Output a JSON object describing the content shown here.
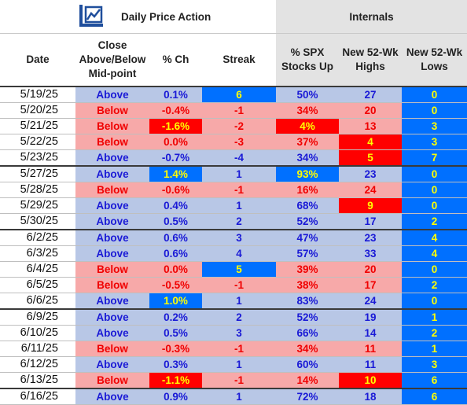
{
  "header": {
    "daily_price_action": "Daily Price Action",
    "internals": "Internals",
    "logo_icon": "rising-chart-logo-icon",
    "columns": {
      "date": "Date",
      "close": [
        "Close",
        "Above/Below",
        "Mid-point"
      ],
      "pct": "% Ch",
      "streak": "Streak",
      "spx": [
        "% SPX",
        "Stocks Up"
      ],
      "highs": [
        "New 52-Wk",
        "Highs"
      ],
      "lows": [
        "New 52-Wk",
        "Lows"
      ]
    }
  },
  "colors": {
    "above_row": "#b8c7e6",
    "below_row": "#f7a9a9",
    "above_text": "#1a1ad6",
    "below_text": "#f00000",
    "highlight_blue": "#0070ff",
    "highlight_red": "#ff0000",
    "highlight_text": "#ffff00"
  },
  "rows": [
    {
      "date": "5/19/25",
      "close": "Above",
      "pct": "0.1%",
      "streak": "6",
      "spx": "50%",
      "highs": "27",
      "lows": "0",
      "hl": {
        "streak": "blue"
      }
    },
    {
      "date": "5/20/25",
      "close": "Below",
      "pct": "-0.4%",
      "streak": "-1",
      "spx": "34%",
      "highs": "20",
      "lows": "0",
      "hl": {}
    },
    {
      "date": "5/21/25",
      "close": "Below",
      "pct": "-1.6%",
      "streak": "-2",
      "spx": "4%",
      "highs": "13",
      "lows": "3",
      "hl": {
        "pct": "red",
        "spx": "red"
      }
    },
    {
      "date": "5/22/25",
      "close": "Below",
      "pct": "0.0%",
      "streak": "-3",
      "spx": "37%",
      "highs": "4",
      "lows": "3",
      "hl": {
        "highs": "red"
      }
    },
    {
      "date": "5/23/25",
      "close": "Above",
      "pct": "-0.7%",
      "streak": "-4",
      "spx": "34%",
      "highs": "5",
      "lows": "7",
      "hl": {
        "highs": "red"
      }
    },
    {
      "date": "5/27/25",
      "close": "Above",
      "pct": "1.4%",
      "streak": "1",
      "spx": "93%",
      "highs": "23",
      "lows": "0",
      "hl": {
        "pct": "blue",
        "spx": "blue"
      },
      "sep": true
    },
    {
      "date": "5/28/25",
      "close": "Below",
      "pct": "-0.6%",
      "streak": "-1",
      "spx": "16%",
      "highs": "24",
      "lows": "0",
      "hl": {}
    },
    {
      "date": "5/29/25",
      "close": "Above",
      "pct": "0.4%",
      "streak": "1",
      "spx": "68%",
      "highs": "9",
      "lows": "0",
      "hl": {
        "highs": "red"
      }
    },
    {
      "date": "5/30/25",
      "close": "Above",
      "pct": "0.5%",
      "streak": "2",
      "spx": "52%",
      "highs": "17",
      "lows": "2",
      "hl": {}
    },
    {
      "date": "6/2/25",
      "close": "Above",
      "pct": "0.6%",
      "streak": "3",
      "spx": "47%",
      "highs": "23",
      "lows": "4",
      "hl": {},
      "sep": true
    },
    {
      "date": "6/3/25",
      "close": "Above",
      "pct": "0.6%",
      "streak": "4",
      "spx": "57%",
      "highs": "33",
      "lows": "4",
      "hl": {}
    },
    {
      "date": "6/4/25",
      "close": "Below",
      "pct": "0.0%",
      "streak": "5",
      "spx": "39%",
      "highs": "20",
      "lows": "0",
      "hl": {
        "streak": "blue"
      }
    },
    {
      "date": "6/5/25",
      "close": "Below",
      "pct": "-0.5%",
      "streak": "-1",
      "spx": "38%",
      "highs": "17",
      "lows": "2",
      "hl": {}
    },
    {
      "date": "6/6/25",
      "close": "Above",
      "pct": "1.0%",
      "streak": "1",
      "spx": "83%",
      "highs": "24",
      "lows": "0",
      "hl": {
        "pct": "blue"
      }
    },
    {
      "date": "6/9/25",
      "close": "Above",
      "pct": "0.2%",
      "streak": "2",
      "spx": "52%",
      "highs": "19",
      "lows": "1",
      "hl": {},
      "sep": true
    },
    {
      "date": "6/10/25",
      "close": "Above",
      "pct": "0.5%",
      "streak": "3",
      "spx": "66%",
      "highs": "14",
      "lows": "2",
      "hl": {}
    },
    {
      "date": "6/11/25",
      "close": "Below",
      "pct": "-0.3%",
      "streak": "-1",
      "spx": "34%",
      "highs": "11",
      "lows": "1",
      "hl": {}
    },
    {
      "date": "6/12/25",
      "close": "Above",
      "pct": "0.3%",
      "streak": "1",
      "spx": "60%",
      "highs": "11",
      "lows": "3",
      "hl": {}
    },
    {
      "date": "6/13/25",
      "close": "Below",
      "pct": "-1.1%",
      "streak": "-1",
      "spx": "14%",
      "highs": "10",
      "lows": "6",
      "hl": {
        "pct": "red",
        "highs": "red"
      }
    },
    {
      "date": "6/16/25",
      "close": "Above",
      "pct": "0.9%",
      "streak": "1",
      "spx": "72%",
      "highs": "18",
      "lows": "6",
      "hl": {},
      "sep": true
    }
  ]
}
